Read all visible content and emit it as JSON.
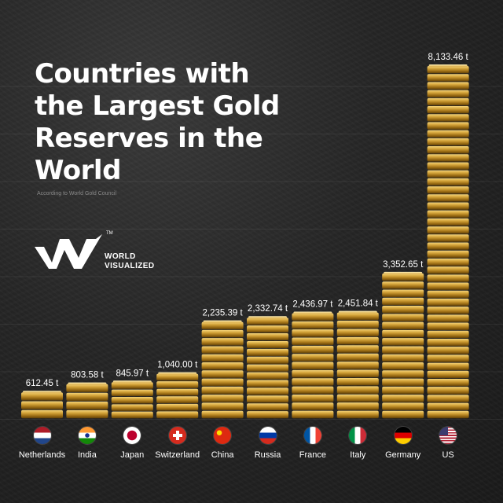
{
  "chart_data": {
    "type": "bar",
    "title": "Countries with the Largest Gold Reserves in the World",
    "subtitle": "According to World Gold Council",
    "categories": [
      "Netherlands",
      "India",
      "Japan",
      "Switzerland",
      "China",
      "Russia",
      "France",
      "Italy",
      "Germany",
      "US"
    ],
    "values": [
      612.45,
      803.58,
      845.97,
      1040.0,
      2235.39,
      2332.74,
      2436.97,
      2451.84,
      3352.65,
      8133.46
    ],
    "value_labels": [
      "612.45 t",
      "803.58 t",
      "845.97 t",
      "1,040.00 t",
      "2,235.39 t",
      "2,332.74 t",
      "2,436.97 t",
      "2,451.84 t",
      "3,352.65 t",
      "8,133.46 t"
    ],
    "unit": "t",
    "ylim": [
      0,
      8133.46
    ],
    "grid": true,
    "bar_color": "#c8962a"
  },
  "brand": {
    "line1": "WORLD",
    "line2": "VISUALIZED",
    "tm": "TM"
  },
  "flags": [
    "netherlands-flag-icon",
    "india-flag-icon",
    "japan-flag-icon",
    "switzerland-flag-icon",
    "china-flag-icon",
    "russia-flag-icon",
    "france-flag-icon",
    "italy-flag-icon",
    "germany-flag-icon",
    "us-flag-icon"
  ]
}
